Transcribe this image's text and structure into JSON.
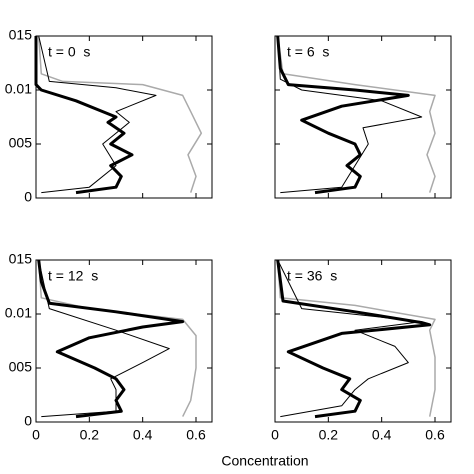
{
  "chart_data": [
    {
      "type": "line",
      "title": "t = 0  s",
      "xlim": [
        0,
        0.66
      ],
      "ylim": [
        0,
        0.015
      ],
      "xticks": [
        0,
        0.2,
        0.4,
        0.6
      ],
      "yticks": [
        0,
        {
          "value": 0.005,
          "label": "005"
        },
        0.01,
        {
          "value": 0.015,
          "label": "015"
        }
      ],
      "series": [
        {
          "color": "#aaaaaa",
          "x": [
            0.58,
            0.6,
            0.57,
            0.62,
            0.58,
            0.55,
            0.4,
            0.1,
            0.02,
            0.01
          ],
          "y": [
            0.0005,
            0.002,
            0.004,
            0.006,
            0.008,
            0.0095,
            0.0105,
            0.0108,
            0.0115,
            0.015
          ]
        },
        {
          "color": "#000000",
          "x": [
            0.02,
            0.2,
            0.3,
            0.25,
            0.35,
            0.3,
            0.45,
            0.3,
            0.05,
            0.01
          ],
          "y": [
            0.0005,
            0.001,
            0.003,
            0.005,
            0.007,
            0.008,
            0.0095,
            0.0102,
            0.0108,
            0.015
          ]
        },
        {
          "color": "#000000",
          "x": [
            0.15,
            0.3,
            0.32,
            0.28,
            0.36,
            0.28,
            0.33,
            0.27,
            0.3,
            0.25,
            0.15,
            0.02,
            0,
            0
          ],
          "y": [
            0.0005,
            0.001,
            0.002,
            0.003,
            0.004,
            0.005,
            0.006,
            0.007,
            0.0075,
            0.008,
            0.009,
            0.01,
            0.0105,
            0.015
          ]
        }
      ]
    },
    {
      "type": "line",
      "title": "t = 6  s",
      "xlim": [
        0,
        0.66
      ],
      "ylim": [
        0,
        0.015
      ],
      "xticks": [
        0,
        0.2,
        0.4,
        0.6
      ],
      "yticks": [
        0,
        0.005,
        0.01,
        0.015
      ],
      "series": [
        {
          "color": "#aaaaaa",
          "x": [
            0.58,
            0.6,
            0.57,
            0.6,
            0.58,
            0.6,
            0.3,
            0.03,
            0.01
          ],
          "y": [
            0.0005,
            0.002,
            0.004,
            0.006,
            0.008,
            0.0095,
            0.0105,
            0.0115,
            0.015
          ]
        },
        {
          "color": "#000000",
          "x": [
            0.02,
            0.25,
            0.3,
            0.35,
            0.33,
            0.55,
            0.4,
            0.1,
            0.02,
            0.01
          ],
          "y": [
            0.0005,
            0.001,
            0.003,
            0.005,
            0.0065,
            0.0075,
            0.009,
            0.01,
            0.011,
            0.015
          ]
        },
        {
          "color": "#000000",
          "x": [
            0.15,
            0.3,
            0.32,
            0.27,
            0.32,
            0.3,
            0.2,
            0.1,
            0.25,
            0.5,
            0.3,
            0.05,
            0.02,
            0.01
          ],
          "y": [
            0.0005,
            0.001,
            0.002,
            0.003,
            0.004,
            0.005,
            0.006,
            0.0072,
            0.0085,
            0.0095,
            0.01,
            0.0105,
            0.012,
            0.015
          ]
        }
      ]
    },
    {
      "type": "line",
      "title": "t = 12  s",
      "xlim": [
        0,
        0.66
      ],
      "ylim": [
        0,
        0.015
      ],
      "xticks": [
        0,
        0.2,
        0.4,
        0.6
      ],
      "yticks": [
        0,
        {
          "value": 0.005,
          "label": "005"
        },
        0.01,
        {
          "value": 0.015,
          "label": "015"
        }
      ],
      "series": [
        {
          "color": "#aaaaaa",
          "x": [
            0.55,
            0.58,
            0.6,
            0.6,
            0.55,
            0.2,
            0.02,
            0.01
          ],
          "y": [
            0.0005,
            0.002,
            0.005,
            0.008,
            0.0095,
            0.0105,
            0.0115,
            0.015
          ]
        },
        {
          "color": "#000000",
          "x": [
            0.02,
            0.3,
            0.3,
            0.28,
            0.4,
            0.5,
            0.3,
            0.05,
            0.01
          ],
          "y": [
            0.0005,
            0.001,
            0.003,
            0.004,
            0.0055,
            0.0068,
            0.0085,
            0.0105,
            0.015
          ]
        },
        {
          "color": "#000000",
          "x": [
            0.15,
            0.32,
            0.3,
            0.33,
            0.3,
            0.22,
            0.08,
            0.2,
            0.4,
            0.55,
            0.3,
            0.05,
            0.02,
            0.01
          ],
          "y": [
            0.0005,
            0.001,
            0.002,
            0.003,
            0.004,
            0.005,
            0.0065,
            0.0078,
            0.0088,
            0.0093,
            0.0102,
            0.011,
            0.013,
            0.015
          ]
        }
      ]
    },
    {
      "type": "line",
      "title": "t = 36  s",
      "xlim": [
        0,
        0.66
      ],
      "ylim": [
        0,
        0.015
      ],
      "xticks": [
        0,
        0.2,
        0.4,
        0.6
      ],
      "yticks": [
        0,
        0.005,
        0.01,
        0.015
      ],
      "series": [
        {
          "color": "#aaaaaa",
          "x": [
            0.58,
            0.6,
            0.6,
            0.58,
            0.6,
            0.3,
            0.02,
            0.01
          ],
          "y": [
            0.0005,
            0.003,
            0.006,
            0.0085,
            0.0095,
            0.0108,
            0.0115,
            0.015
          ]
        },
        {
          "color": "#000000",
          "x": [
            0.02,
            0.25,
            0.3,
            0.35,
            0.5,
            0.45,
            0.3,
            0.55,
            0.1,
            0.01
          ],
          "y": [
            0.0005,
            0.0015,
            0.003,
            0.004,
            0.0055,
            0.007,
            0.0085,
            0.0093,
            0.0105,
            0.015
          ]
        },
        {
          "color": "#000000",
          "x": [
            0.15,
            0.3,
            0.32,
            0.25,
            0.28,
            0.18,
            0.05,
            0.25,
            0.58,
            0.55,
            0.3,
            0.03,
            0.01
          ],
          "y": [
            0.0005,
            0.001,
            0.002,
            0.003,
            0.004,
            0.005,
            0.0065,
            0.0082,
            0.009,
            0.0092,
            0.0102,
            0.0112,
            0.015
          ]
        }
      ]
    }
  ],
  "xlabel": "Concentration"
}
